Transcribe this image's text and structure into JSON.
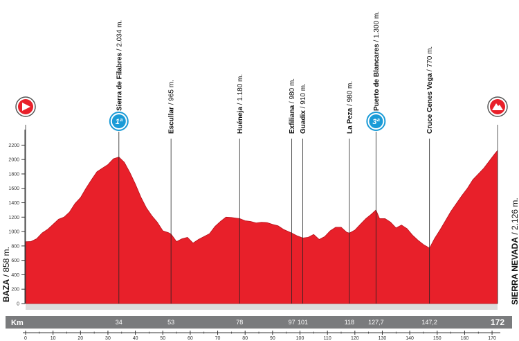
{
  "chart_data": {
    "type": "area",
    "title": "",
    "xlabel": "",
    "ylabel": "",
    "xlim": [
      0,
      172
    ],
    "ylim": [
      0,
      2300
    ],
    "y_ticks": [
      0,
      200,
      400,
      600,
      800,
      1000,
      1200,
      1400,
      1600,
      1800,
      2000,
      2200
    ],
    "x_ticks": [
      0,
      10,
      20,
      30,
      40,
      50,
      60,
      70,
      80,
      90,
      100,
      110,
      120,
      130,
      140,
      150,
      160,
      170
    ],
    "grid": false,
    "fill_color": "#e8202a",
    "profile": [
      [
        0,
        858
      ],
      [
        2,
        862
      ],
      [
        4,
        900
      ],
      [
        6,
        980
      ],
      [
        8,
        1030
      ],
      [
        10,
        1100
      ],
      [
        12,
        1170
      ],
      [
        14,
        1200
      ],
      [
        16,
        1270
      ],
      [
        18,
        1390
      ],
      [
        20,
        1470
      ],
      [
        22,
        1600
      ],
      [
        24,
        1720
      ],
      [
        26,
        1830
      ],
      [
        28,
        1880
      ],
      [
        30,
        1930
      ],
      [
        32,
        2010
      ],
      [
        34,
        2034
      ],
      [
        36,
        1960
      ],
      [
        38,
        1820
      ],
      [
        40,
        1660
      ],
      [
        42,
        1480
      ],
      [
        44,
        1330
      ],
      [
        46,
        1220
      ],
      [
        48,
        1130
      ],
      [
        50,
        1010
      ],
      [
        52,
        985
      ],
      [
        53,
        965
      ],
      [
        55,
        860
      ],
      [
        57,
        900
      ],
      [
        59,
        920
      ],
      [
        61,
        840
      ],
      [
        63,
        890
      ],
      [
        65,
        930
      ],
      [
        67,
        970
      ],
      [
        69,
        1070
      ],
      [
        71,
        1140
      ],
      [
        73,
        1200
      ],
      [
        75,
        1195
      ],
      [
        77,
        1185
      ],
      [
        78,
        1180
      ],
      [
        80,
        1150
      ],
      [
        82,
        1140
      ],
      [
        84,
        1120
      ],
      [
        86,
        1130
      ],
      [
        88,
        1125
      ],
      [
        90,
        1100
      ],
      [
        92,
        1080
      ],
      [
        94,
        1030
      ],
      [
        97,
        980
      ],
      [
        99,
        940
      ],
      [
        101,
        910
      ],
      [
        103,
        920
      ],
      [
        105,
        960
      ],
      [
        107,
        890
      ],
      [
        109,
        930
      ],
      [
        111,
        1010
      ],
      [
        113,
        1060
      ],
      [
        115,
        1060
      ],
      [
        117,
        990
      ],
      [
        118,
        980
      ],
      [
        120,
        1020
      ],
      [
        122,
        1100
      ],
      [
        124,
        1180
      ],
      [
        126,
        1240
      ],
      [
        127.7,
        1300
      ],
      [
        129,
        1180
      ],
      [
        131,
        1180
      ],
      [
        133,
        1130
      ],
      [
        135,
        1050
      ],
      [
        137,
        1090
      ],
      [
        139,
        1040
      ],
      [
        141,
        950
      ],
      [
        143,
        880
      ],
      [
        145,
        820
      ],
      [
        147.2,
        770
      ],
      [
        149,
        900
      ],
      [
        151,
        1020
      ],
      [
        153,
        1150
      ],
      [
        155,
        1280
      ],
      [
        157,
        1390
      ],
      [
        159,
        1500
      ],
      [
        161,
        1600
      ],
      [
        163,
        1720
      ],
      [
        165,
        1800
      ],
      [
        167,
        1880
      ],
      [
        169,
        1980
      ],
      [
        171,
        2080
      ],
      [
        172,
        2126
      ]
    ],
    "waypoints": [
      {
        "km": 34,
        "km_label": "34",
        "name": "Sierra de Filabres",
        "alt": "2.034 m.",
        "category": "1ª"
      },
      {
        "km": 53,
        "km_label": "53",
        "name": "Escullar",
        "alt": "965 m.",
        "category": ""
      },
      {
        "km": 78,
        "km_label": "78",
        "name": "Huéneja",
        "alt": "1.180 m.",
        "category": ""
      },
      {
        "km": 97,
        "km_label": "97",
        "name": "Exfiliana",
        "alt": "980 m.",
        "category": ""
      },
      {
        "km": 101,
        "km_label": "101",
        "name": "Guadix",
        "alt": "910 m.",
        "category": ""
      },
      {
        "km": 118,
        "km_label": "118",
        "name": "La Peza",
        "alt": "980 m.",
        "category": ""
      },
      {
        "km": 127.7,
        "km_label": "127,7",
        "name": "Puerto de Blancares",
        "alt": "1.300 m.",
        "category": "3ª"
      },
      {
        "km": 147.2,
        "km_label": "147,2",
        "name": "Cruce Cenes Vega",
        "alt": "770 m.",
        "category": ""
      }
    ],
    "start": {
      "name": "BAZA",
      "alt": "858 m.",
      "icon": "start-arrow-icon"
    },
    "finish": {
      "name": "SIERRA NEVADA",
      "alt": "2.126 m.",
      "km_label": "172",
      "icon": "mountain-finish-icon"
    },
    "km_bar_label": "Km",
    "colors": {
      "fill": "#e8202a",
      "km_bar": "#7a7b7d",
      "badge": "#1a9bd7",
      "icon_red": "#e8202a"
    }
  }
}
